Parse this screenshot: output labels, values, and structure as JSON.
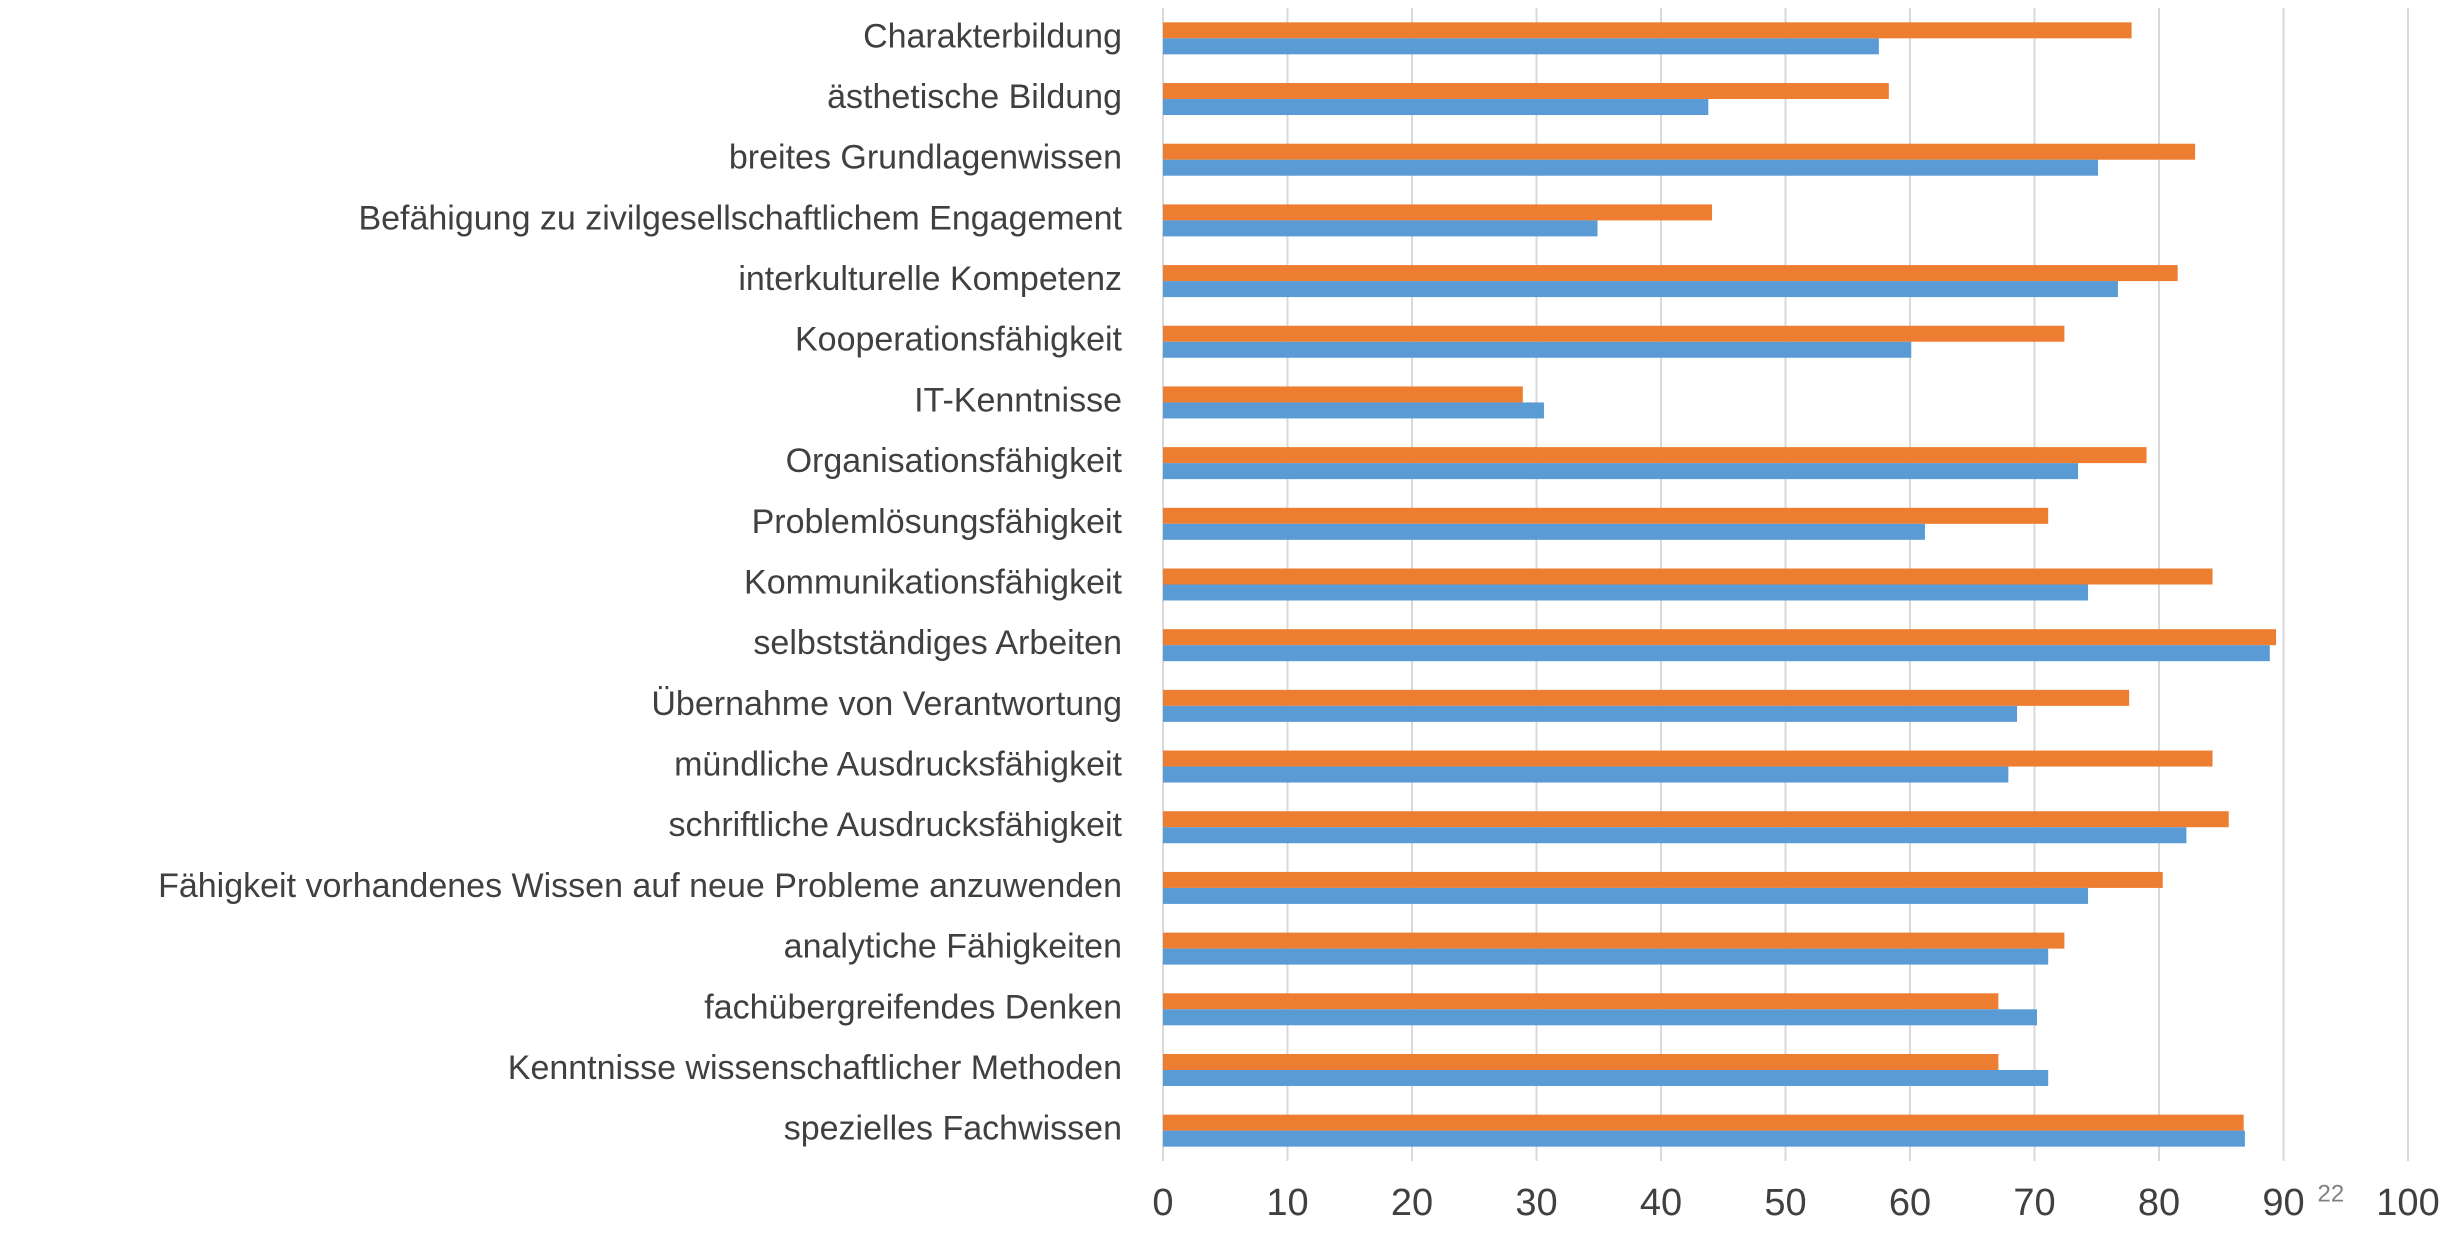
{
  "chart_data": {
    "type": "barh",
    "categories": [
      "Charakterbildung",
      "ästhetische Bildung",
      "breites Grundlagenwissen",
      "Befähigung zu zivilgesellschaftlichem Engagement",
      "interkulturelle Kompetenz",
      "Kooperationsfähigkeit",
      "IT-Kenntnisse",
      "Organisationsfähigkeit",
      "Problemlösungsfähigkeit",
      "Kommunikationsfähigkeit",
      "selbstständiges Arbeiten",
      "Übernahme von Verantwortung",
      "mündliche Ausdrucksfähigkeit",
      "schriftliche Ausdrucksfähigkeit",
      "Fähigkeit vorhandenes Wissen auf neue Probleme anzuwenden",
      "analytiche Fähigkeiten",
      "fachübergreifendes Denken",
      "Kenntnisse wissenschaftlicher Methoden",
      "spezielles Fachwissen"
    ],
    "series": [
      {
        "color": "#ed7d31",
        "values": [
          77.8,
          58.3,
          82.9,
          44.1,
          81.5,
          72.4,
          28.9,
          79.0,
          71.1,
          84.3,
          89.4,
          77.6,
          84.3,
          85.6,
          80.3,
          72.4,
          67.1,
          67.1,
          86.8
        ]
      },
      {
        "color": "#5b9bd5",
        "values": [
          57.5,
          43.8,
          75.1,
          34.9,
          76.7,
          60.1,
          30.6,
          73.5,
          61.2,
          74.3,
          88.9,
          68.6,
          67.9,
          82.2,
          74.3,
          71.1,
          70.2,
          71.1,
          86.9
        ]
      }
    ],
    "xlim": [
      0,
      100
    ],
    "xticks": [
      0,
      10,
      20,
      30,
      40,
      50,
      60,
      70,
      80,
      90,
      100
    ],
    "grid": true,
    "annotation": "22"
  }
}
